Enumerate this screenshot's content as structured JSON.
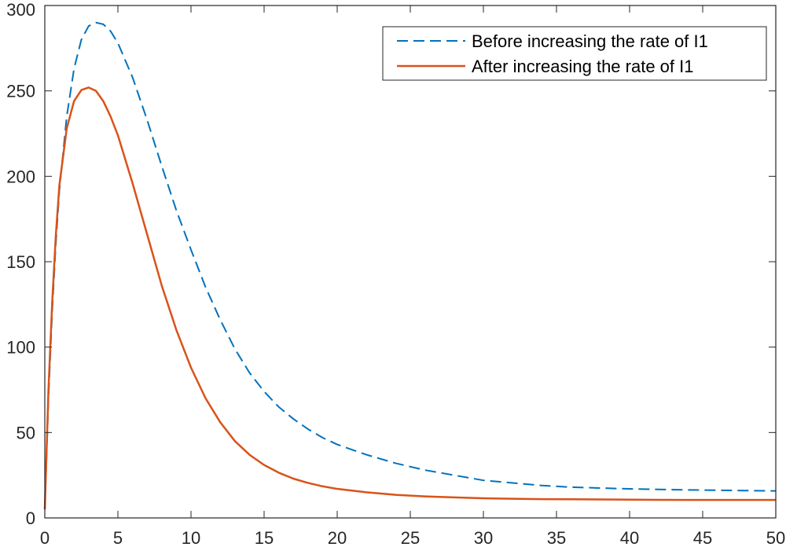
{
  "chart_data": {
    "type": "line",
    "title": "",
    "xlabel": "",
    "ylabel": "",
    "xlim": [
      0,
      50
    ],
    "ylim": [
      0,
      300
    ],
    "xticks": [
      0,
      5,
      10,
      15,
      20,
      25,
      30,
      35,
      40,
      45,
      50
    ],
    "yticks": [
      0,
      50,
      100,
      150,
      200,
      250,
      300
    ],
    "grid": false,
    "legend_position": "top-right",
    "series": [
      {
        "name": "Before increasing the rate of I1",
        "color": "#0072BD",
        "style": "dashed",
        "x": [
          0,
          0.25,
          0.5,
          0.75,
          1,
          1.5,
          2,
          2.5,
          3,
          3.5,
          4,
          4.5,
          5,
          6,
          7,
          8,
          9,
          10,
          11,
          12,
          13,
          14,
          15,
          16,
          17,
          18,
          19,
          20,
          22,
          24,
          26,
          28,
          30,
          32,
          34,
          36,
          38,
          40,
          42,
          44,
          46,
          48,
          50
        ],
        "y": [
          5,
          70,
          120,
          160,
          192,
          235,
          263,
          280,
          288,
          290,
          289,
          285,
          278,
          258,
          233,
          206,
          180,
          157,
          135,
          116,
          99,
          85,
          74,
          65,
          58,
          52,
          47,
          43,
          37,
          32,
          28,
          25,
          22,
          20.5,
          19,
          18,
          17.5,
          17,
          16.7,
          16.4,
          16.2,
          16.0,
          15.8
        ]
      },
      {
        "name": "After increasing the rate of I1",
        "color": "#D95319",
        "style": "solid",
        "x": [
          0,
          0.25,
          0.5,
          0.75,
          1,
          1.5,
          2,
          2.5,
          3,
          3.5,
          4,
          4.5,
          5,
          6,
          7,
          8,
          9,
          10,
          11,
          12,
          13,
          14,
          15,
          16,
          17,
          18,
          19,
          20,
          22,
          24,
          26,
          28,
          30,
          32,
          34,
          36,
          38,
          40,
          42,
          44,
          46,
          48,
          50
        ],
        "y": [
          5,
          75,
          125,
          165,
          195,
          228,
          244,
          250.5,
          252,
          250,
          244,
          235,
          224,
          196,
          166,
          136,
          110,
          88,
          70,
          56,
          45,
          37,
          31,
          26.5,
          23,
          20.5,
          18.5,
          17,
          15,
          13.5,
          12.6,
          12,
          11.5,
          11.2,
          11.0,
          10.9,
          10.8,
          10.7,
          10.6,
          10.55,
          10.5,
          10.5,
          10.5
        ]
      }
    ]
  }
}
